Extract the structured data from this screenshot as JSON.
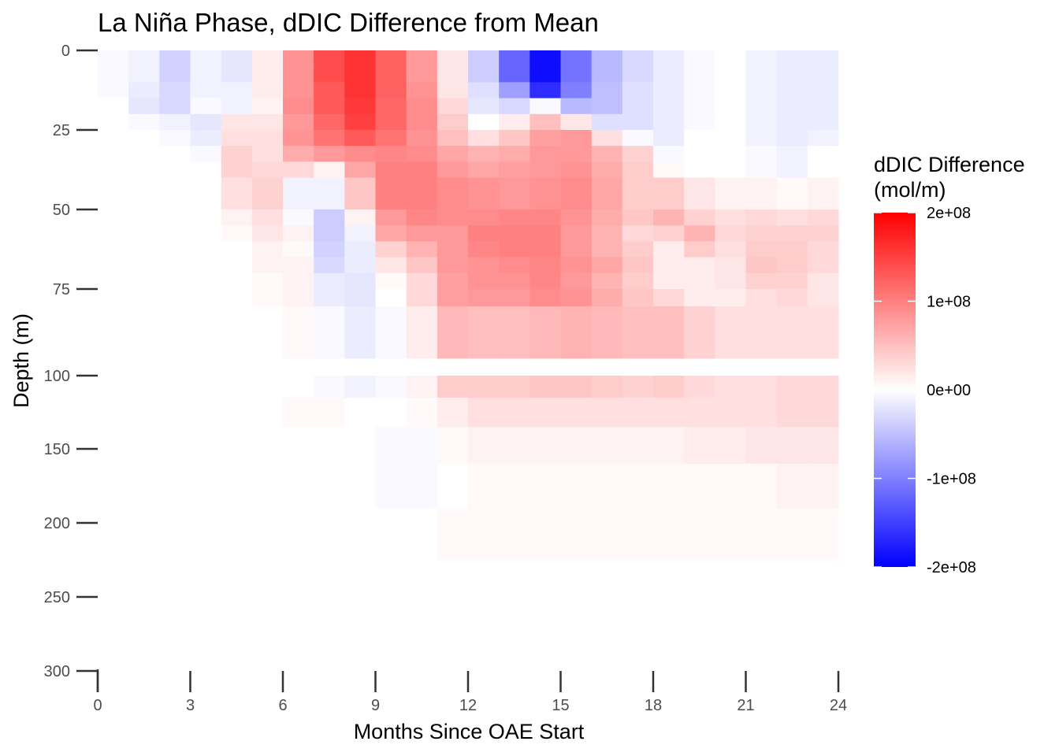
{
  "chart_data": {
    "type": "heatmap",
    "title": "La Niña Phase, dDIC Difference from Mean",
    "xlabel": "Months Since OAE Start",
    "ylabel": "Depth (m)",
    "xlim": [
      0,
      24
    ],
    "x_ticks": [
      0,
      3,
      6,
      9,
      12,
      15,
      18,
      21,
      24
    ],
    "x_tick_labels": [
      "0",
      "3",
      "6",
      "9",
      "12",
      "15",
      "18",
      "21",
      "24"
    ],
    "y_ticks": [
      0,
      25,
      50,
      75,
      100,
      150,
      200,
      250,
      300
    ],
    "y_tick_labels": [
      "0",
      "25",
      "50",
      "75",
      "100",
      "150",
      "200",
      "250",
      "300"
    ],
    "y_reversed": true,
    "y_scale": "piecewise: linear 0–100 m upper panel, compressed 100–300 m lower panel",
    "grid": false,
    "legend": {
      "title": "dDIC Difference\n(mol/m)",
      "position": "right",
      "breaks": [
        200000000,
        100000000,
        0,
        -100000000,
        -200000000
      ],
      "labels": [
        "2e+08",
        "1e+08",
        "0e+00",
        "-1e+08",
        "-2e+08"
      ],
      "colors": {
        "low": "#0000ff",
        "mid": "#ffffff",
        "high": "#ff0000"
      },
      "limits": [
        -200000000,
        200000000
      ]
    },
    "months": [
      0.5,
      1.5,
      2.5,
      3.5,
      4.5,
      5.5,
      6.5,
      7.5,
      8.5,
      9.5,
      10.5,
      11.5,
      12.5,
      13.5,
      14.5,
      15.5,
      16.5,
      17.5,
      18.5,
      19.5,
      20.5,
      21.5,
      22.5,
      23.5
    ],
    "depth_bins": [
      [
        0,
        5
      ],
      [
        5,
        10
      ],
      [
        10,
        15
      ],
      [
        15,
        20
      ],
      [
        20,
        25
      ],
      [
        25,
        30
      ],
      [
        30,
        35
      ],
      [
        35,
        40
      ],
      [
        40,
        45
      ],
      [
        45,
        50
      ],
      [
        50,
        55
      ],
      [
        55,
        60
      ],
      [
        60,
        65
      ],
      [
        65,
        70
      ],
      [
        70,
        75
      ],
      [
        75,
        80
      ],
      [
        80,
        85
      ],
      [
        85,
        90
      ],
      [
        90,
        95
      ],
      [
        100,
        115
      ],
      [
        115,
        135
      ],
      [
        135,
        160
      ],
      [
        160,
        190
      ],
      [
        190,
        225
      ],
      [
        225,
        265
      ]
    ],
    "values_1e6": [
      [
        -5,
        -10,
        -35,
        -10,
        -20,
        15,
        85,
        140,
        160,
        125,
        80,
        20,
        -40,
        -120,
        -190,
        -110,
        -55,
        -30,
        -15,
        -5,
        0,
        -10,
        -15,
        -15
      ],
      [
        -5,
        -10,
        -35,
        -10,
        -20,
        15,
        85,
        140,
        160,
        125,
        80,
        20,
        -40,
        -120,
        -190,
        -110,
        -55,
        -30,
        -15,
        -5,
        0,
        -10,
        -15,
        -15
      ],
      [
        -5,
        -15,
        -30,
        -10,
        -10,
        15,
        85,
        130,
        160,
        125,
        85,
        20,
        -25,
        -75,
        -165,
        -100,
        -50,
        -25,
        -15,
        -5,
        0,
        -10,
        -15,
        -15
      ],
      [
        0,
        -20,
        -30,
        -5,
        -10,
        10,
        90,
        130,
        155,
        120,
        90,
        30,
        -20,
        -30,
        -5,
        -55,
        -50,
        -25,
        -15,
        -5,
        0,
        -10,
        -15,
        -15
      ],
      [
        0,
        -5,
        -10,
        -20,
        20,
        20,
        80,
        120,
        150,
        120,
        90,
        40,
        0,
        15,
        50,
        20,
        -25,
        -25,
        -15,
        -5,
        0,
        -10,
        -15,
        -15
      ],
      [
        0,
        0,
        -5,
        -15,
        25,
        25,
        85,
        110,
        130,
        110,
        85,
        50,
        25,
        45,
        75,
        80,
        25,
        -5,
        -15,
        0,
        0,
        -10,
        -15,
        -10
      ],
      [
        0,
        0,
        0,
        -5,
        35,
        25,
        65,
        80,
        90,
        95,
        90,
        70,
        60,
        65,
        80,
        80,
        60,
        35,
        -5,
        0,
        0,
        -5,
        -10,
        0
      ],
      [
        0,
        0,
        0,
        0,
        35,
        30,
        30,
        10,
        70,
        100,
        100,
        80,
        70,
        75,
        80,
        85,
        65,
        40,
        5,
        0,
        0,
        -5,
        -10,
        0
      ],
      [
        0,
        0,
        0,
        0,
        25,
        35,
        -10,
        -10,
        45,
        100,
        100,
        90,
        85,
        80,
        85,
        90,
        70,
        40,
        40,
        20,
        10,
        10,
        5,
        10
      ],
      [
        0,
        0,
        0,
        0,
        25,
        35,
        -10,
        -10,
        45,
        100,
        100,
        90,
        85,
        80,
        85,
        90,
        70,
        40,
        40,
        20,
        10,
        10,
        5,
        10
      ],
      [
        0,
        0,
        0,
        0,
        10,
        25,
        -5,
        -40,
        10,
        80,
        95,
        90,
        90,
        95,
        95,
        85,
        65,
        45,
        60,
        35,
        25,
        30,
        25,
        30
      ],
      [
        0,
        0,
        0,
        0,
        5,
        20,
        10,
        -40,
        -10,
        70,
        80,
        80,
        100,
        100,
        100,
        80,
        60,
        30,
        35,
        60,
        30,
        35,
        35,
        35
      ],
      [
        0,
        0,
        0,
        0,
        0,
        10,
        5,
        -35,
        -15,
        35,
        60,
        80,
        95,
        100,
        100,
        80,
        60,
        40,
        15,
        40,
        25,
        40,
        40,
        30
      ],
      [
        0,
        0,
        0,
        0,
        0,
        10,
        10,
        -30,
        -15,
        20,
        45,
        80,
        85,
        90,
        95,
        85,
        70,
        45,
        15,
        15,
        20,
        45,
        40,
        30
      ],
      [
        0,
        0,
        0,
        0,
        0,
        5,
        10,
        -15,
        -20,
        5,
        30,
        75,
        85,
        85,
        95,
        80,
        60,
        40,
        15,
        15,
        20,
        35,
        35,
        20
      ],
      [
        0,
        0,
        0,
        0,
        0,
        5,
        10,
        -15,
        -20,
        0,
        30,
        75,
        80,
        80,
        90,
        85,
        65,
        45,
        30,
        15,
        15,
        25,
        30,
        20
      ],
      [
        0,
        0,
        0,
        0,
        0,
        0,
        5,
        -5,
        -15,
        -5,
        15,
        55,
        50,
        50,
        55,
        60,
        55,
        50,
        50,
        35,
        25,
        25,
        25,
        25
      ],
      [
        0,
        0,
        0,
        0,
        0,
        0,
        5,
        -5,
        -15,
        -5,
        15,
        55,
        50,
        50,
        55,
        60,
        55,
        50,
        50,
        35,
        25,
        25,
        25,
        25
      ],
      [
        0,
        0,
        0,
        0,
        0,
        0,
        5,
        -5,
        -15,
        -5,
        15,
        55,
        50,
        50,
        55,
        60,
        55,
        50,
        50,
        35,
        25,
        25,
        25,
        25
      ],
      [
        0,
        0,
        0,
        0,
        0,
        0,
        0,
        -5,
        -10,
        -5,
        10,
        40,
        40,
        40,
        45,
        45,
        40,
        35,
        40,
        30,
        25,
        25,
        30,
        30
      ],
      [
        0,
        0,
        0,
        0,
        0,
        0,
        5,
        5,
        0,
        0,
        5,
        15,
        25,
        25,
        25,
        25,
        25,
        25,
        25,
        25,
        25,
        25,
        30,
        30
      ],
      [
        0,
        0,
        0,
        0,
        0,
        0,
        0,
        0,
        0,
        -5,
        -5,
        5,
        10,
        10,
        10,
        10,
        10,
        10,
        10,
        15,
        15,
        20,
        20,
        20
      ],
      [
        0,
        0,
        0,
        0,
        0,
        0,
        0,
        0,
        0,
        -5,
        -5,
        0,
        5,
        5,
        5,
        5,
        5,
        5,
        5,
        5,
        5,
        5,
        10,
        10
      ],
      [
        0,
        0,
        0,
        0,
        0,
        0,
        0,
        0,
        0,
        0,
        0,
        5,
        5,
        5,
        5,
        5,
        5,
        5,
        5,
        5,
        5,
        5,
        5,
        5
      ],
      [
        0,
        0,
        0,
        0,
        0,
        0,
        0,
        0,
        0,
        0,
        0,
        0,
        0,
        0,
        0,
        0,
        0,
        0,
        0,
        0,
        0,
        0,
        0,
        0
      ]
    ]
  }
}
